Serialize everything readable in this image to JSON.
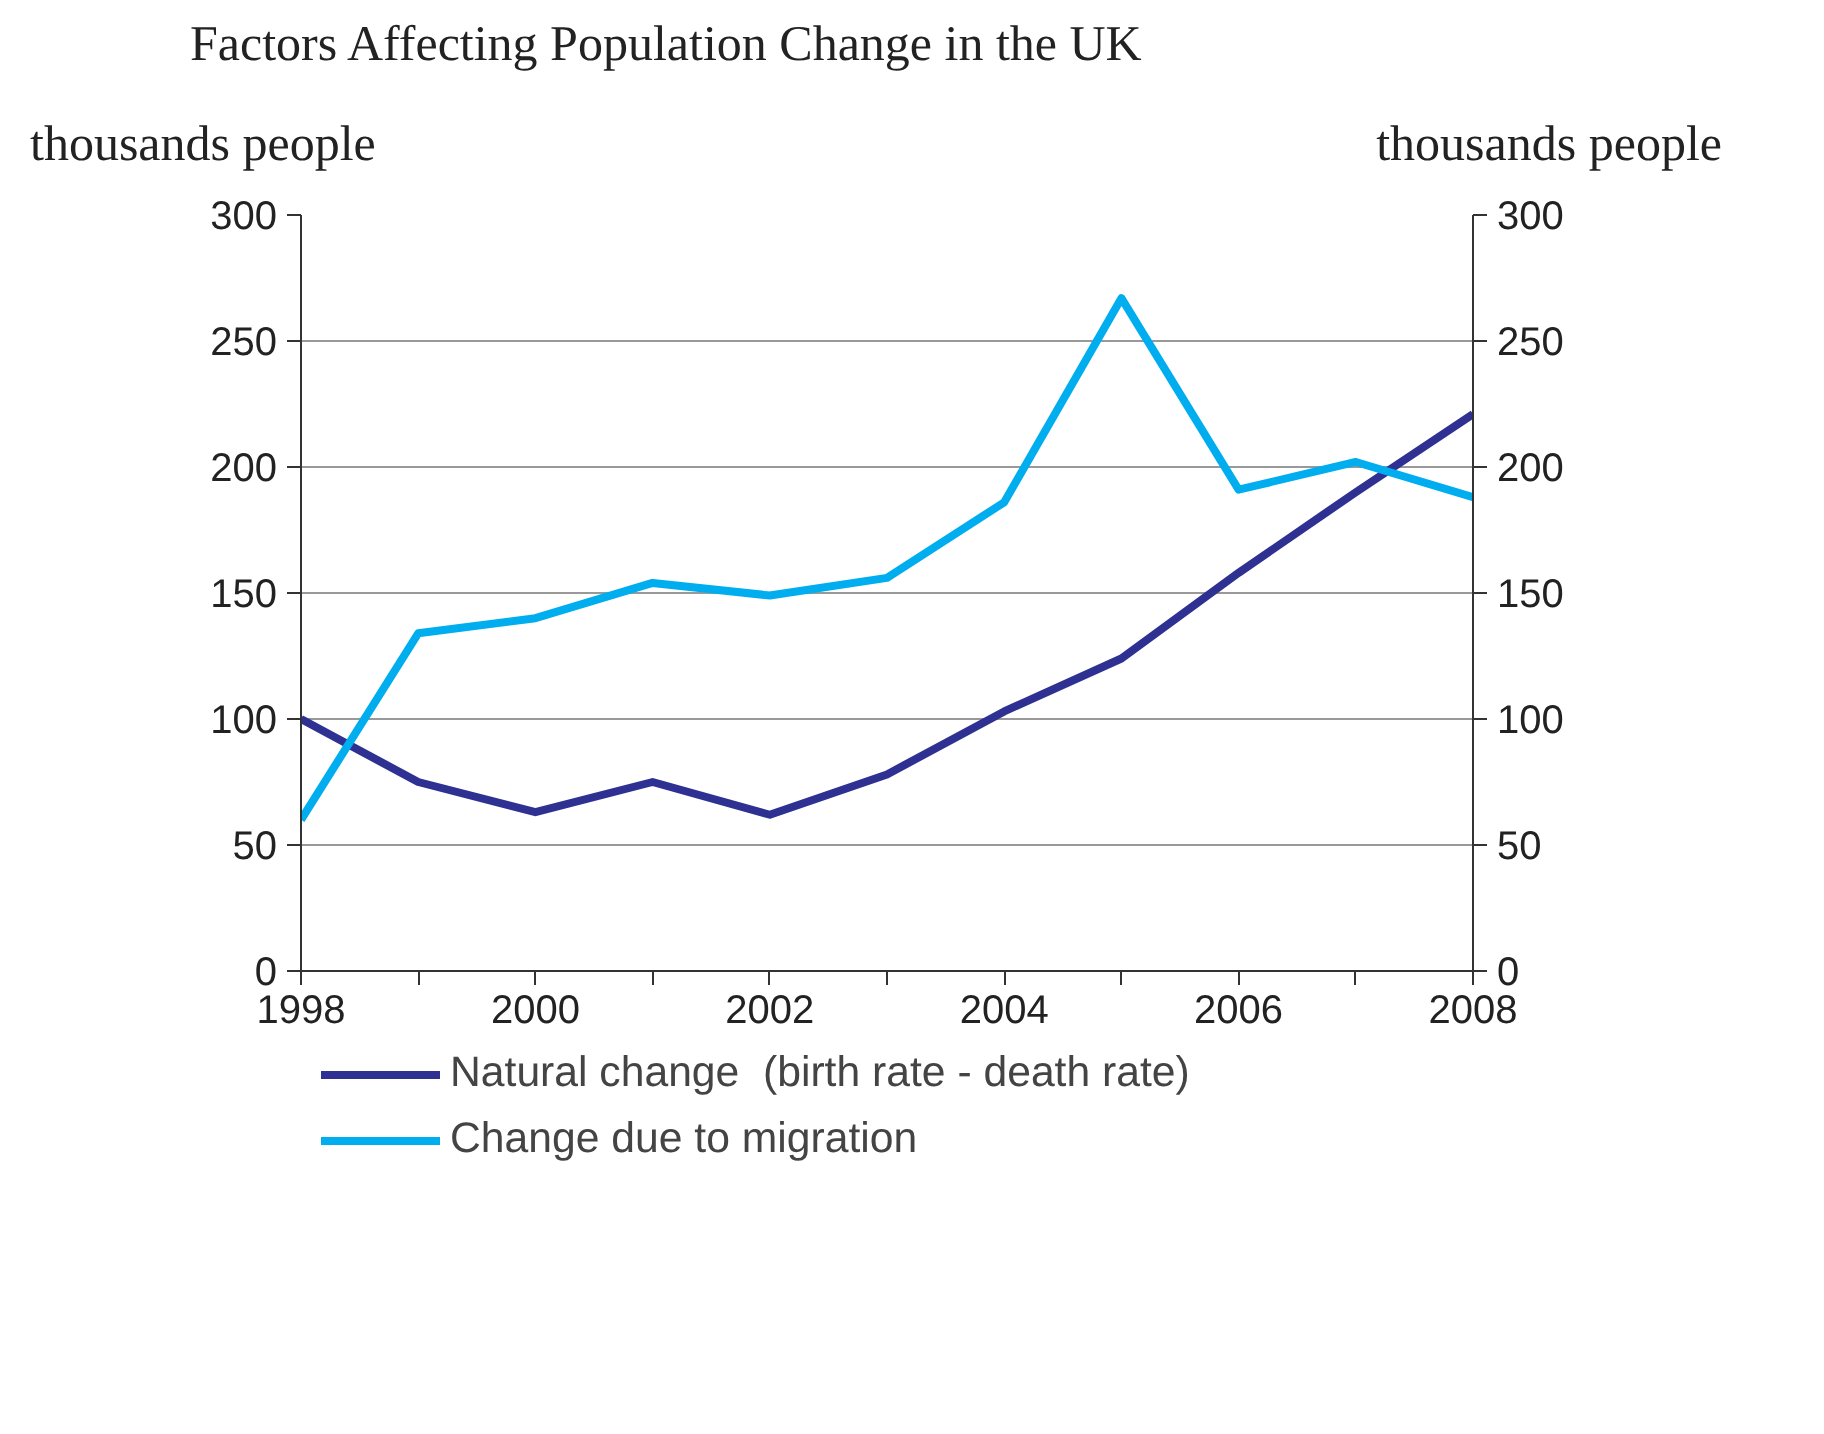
{
  "chart_data": {
    "type": "line",
    "title": "Factors Affecting Population Change in the UK",
    "ylabel": "thousands people",
    "y2label": "thousands people",
    "x": [
      1998,
      1999,
      2000,
      2001,
      2002,
      2003,
      2004,
      2005,
      2006,
      2007,
      2008
    ],
    "series": [
      {
        "name": "Natural change  (birth rate - death rate)",
        "color": "#2e3192",
        "values": [
          100,
          75,
          63,
          75,
          62,
          78,
          103,
          124,
          158,
          190,
          221
        ]
      },
      {
        "name": "Change due to migration",
        "color": "#00aeef",
        "values": [
          60,
          134,
          140,
          154,
          149,
          156,
          186,
          267,
          191,
          202,
          188
        ]
      }
    ],
    "xlim": [
      1998,
      2008
    ],
    "xticks": [
      1998,
      {
        "value": 1999,
        "label": null
      },
      2000,
      {
        "value": 2001,
        "label": null
      },
      2002,
      {
        "value": 2003,
        "label": null
      },
      2004,
      {
        "value": 2005,
        "label": null
      },
      2006,
      {
        "value": 2007,
        "label": null
      },
      2008
    ],
    "ylim": [
      0,
      300
    ],
    "yticks": [
      0,
      50,
      100,
      150,
      200,
      250,
      300
    ],
    "y2lim": [
      0,
      300
    ],
    "y2ticks": [
      0,
      50,
      100,
      150,
      200,
      250,
      300
    ],
    "grid": "y",
    "legend": "bottom",
    "marker": "none",
    "line_style": "solid"
  }
}
